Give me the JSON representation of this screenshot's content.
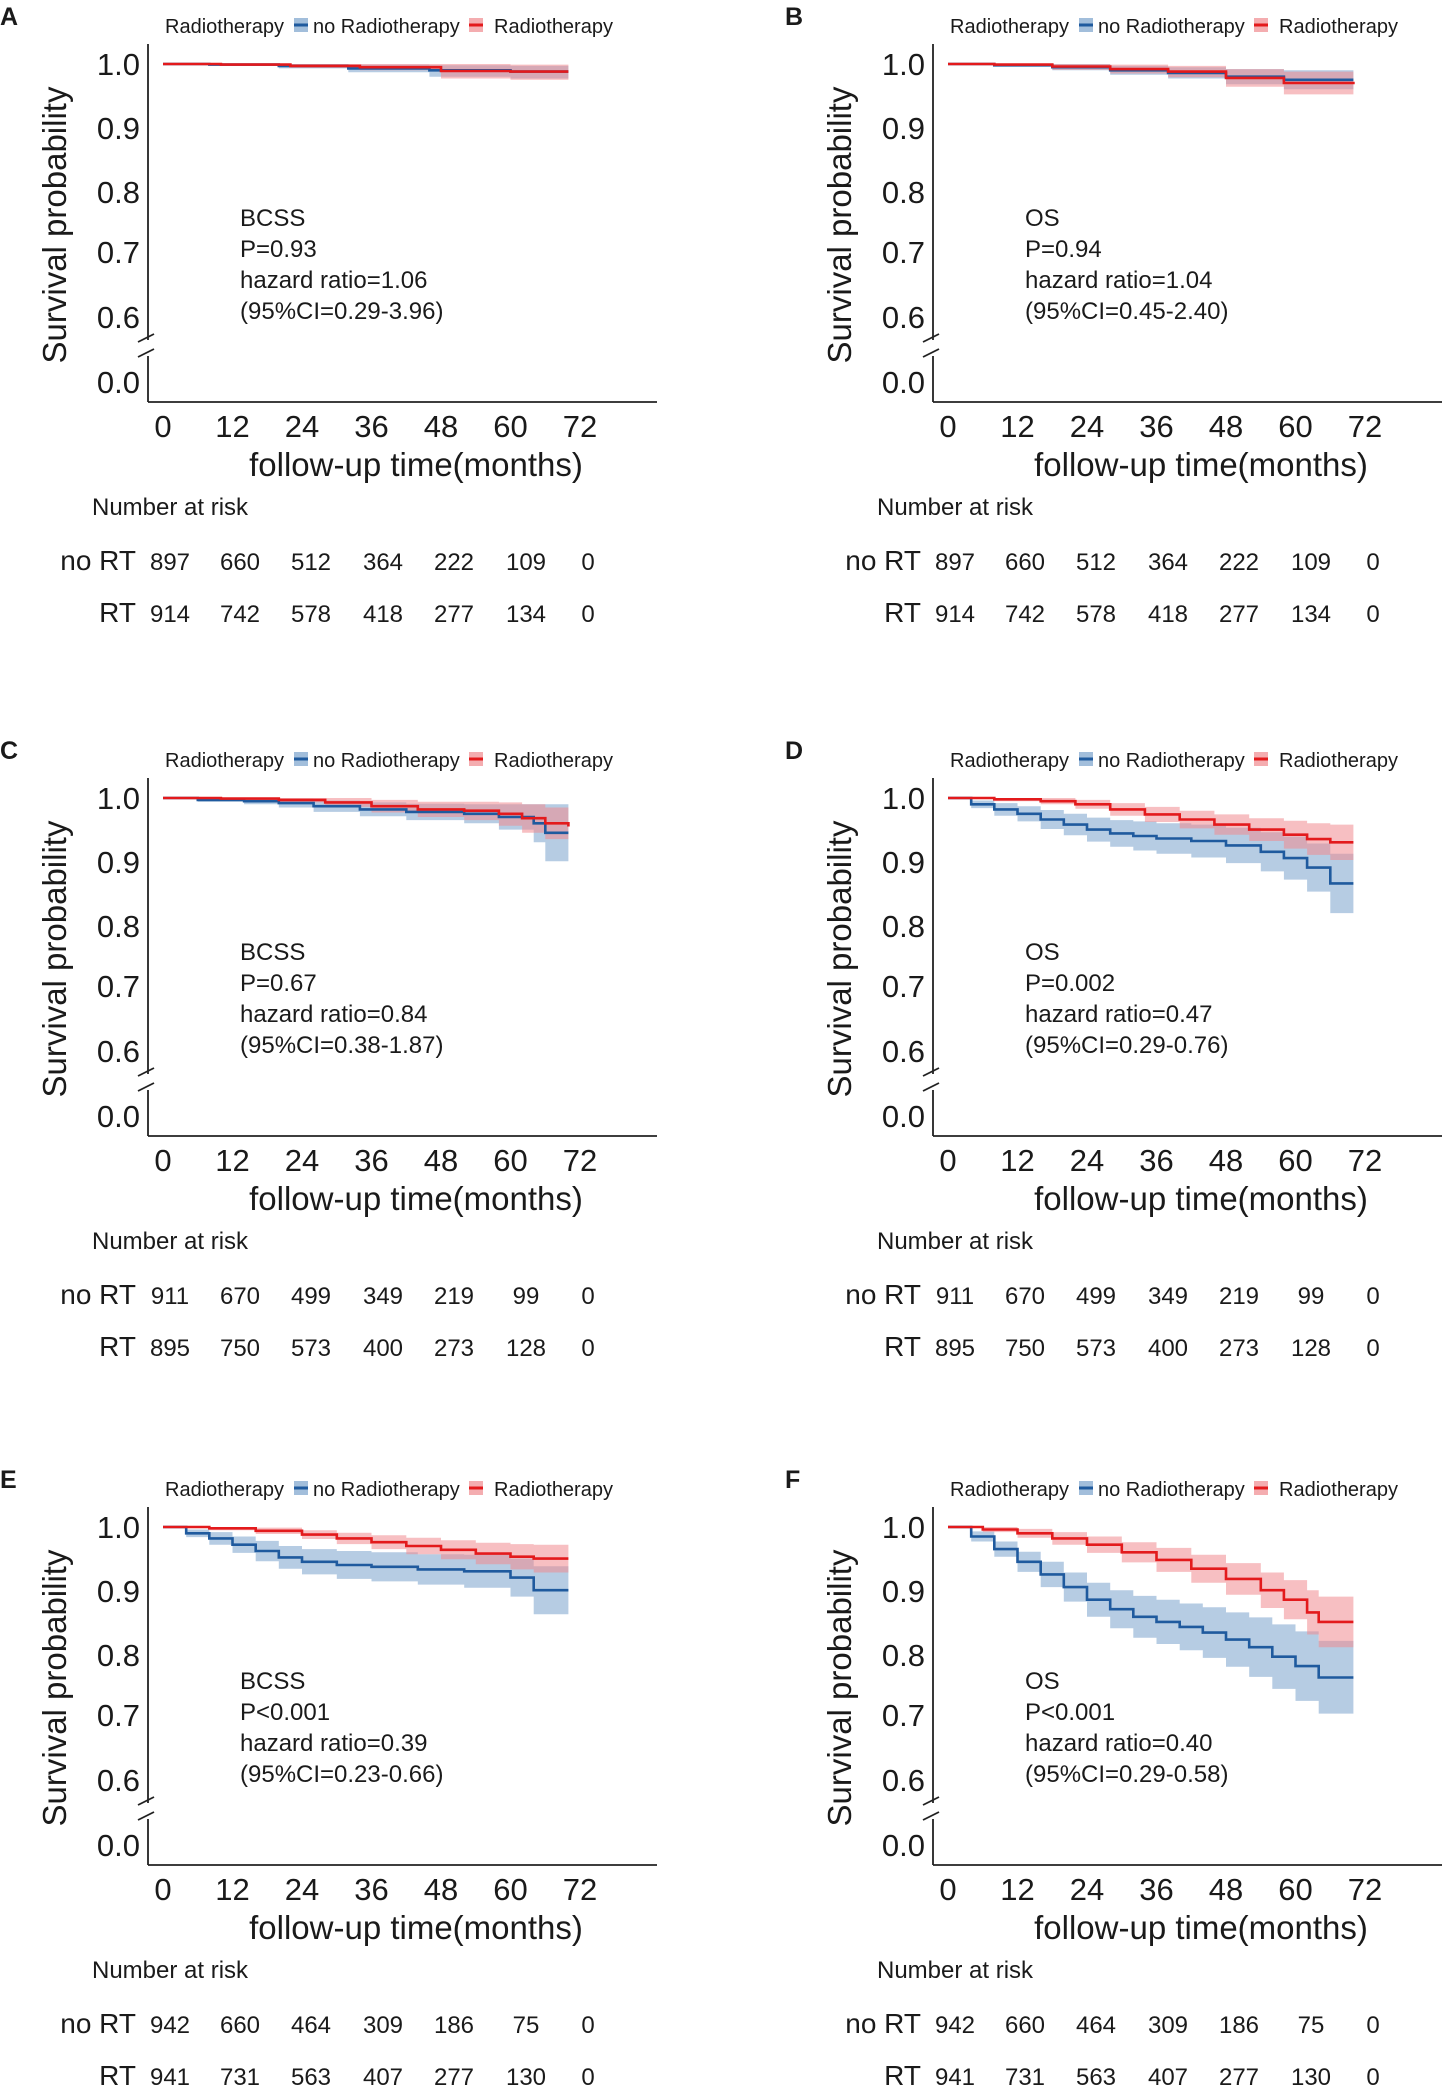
{
  "colors": {
    "no_rt": "#1f5a9e",
    "rt": "#e31a1c",
    "no_rt_band": "#7aa3cc",
    "rt_band": "#f08a8f",
    "axis": "#222222"
  },
  "shared": {
    "legend_title": "Radiotherapy",
    "legend_no": "no Radiotherapy",
    "legend_rt": "Radiotherapy",
    "ylabel": "Survival probability",
    "xlabel": "follow-up time(months)",
    "yticks": [
      "1.0",
      "0.9",
      "0.8",
      "0.7",
      "0.6",
      "0.0"
    ],
    "xticks": [
      "0",
      "12",
      "24",
      "36",
      "48",
      "60",
      "72"
    ],
    "risk_title": "Number at risk",
    "risk_no_label": "no RT",
    "risk_rt_label": "RT"
  },
  "chart_data": [
    {
      "panel": "A",
      "type": "line",
      "endpoint": "BCSS",
      "annotation": [
        "BCSS",
        "P=0.93",
        "hazard ratio=1.06",
        "(95%CI=0.29-3.96)"
      ],
      "xlim": [
        0,
        72
      ],
      "ylim": [
        0.55,
        1.0
      ],
      "y_axis_break": "0.6 to 0.0",
      "series": [
        {
          "name": "no Radiotherapy",
          "x": [
            0,
            8,
            20,
            32,
            46,
            60,
            70
          ],
          "y": [
            1.0,
            0.999,
            0.997,
            0.993,
            0.99,
            0.988,
            0.988
          ],
          "lower": [
            1.0,
            0.997,
            0.993,
            0.987,
            0.98,
            0.977,
            0.977
          ],
          "upper": [
            1.0,
            1.0,
            1.0,
            0.999,
            0.998,
            0.997,
            0.997
          ]
        },
        {
          "name": "Radiotherapy",
          "x": [
            0,
            10,
            22,
            34,
            48,
            60,
            70
          ],
          "y": [
            1.0,
            0.999,
            0.997,
            0.995,
            0.989,
            0.988,
            0.988
          ],
          "lower": [
            1.0,
            0.997,
            0.994,
            0.99,
            0.977,
            0.975,
            0.975
          ],
          "upper": [
            1.0,
            1.0,
            1.0,
            1.0,
            1.0,
            0.999,
            0.999
          ]
        }
      ],
      "risk_no": [
        897,
        660,
        512,
        364,
        222,
        109,
        0
      ],
      "risk_rt": [
        914,
        742,
        578,
        418,
        277,
        134,
        0
      ]
    },
    {
      "panel": "B",
      "type": "line",
      "endpoint": "OS",
      "annotation": [
        "OS",
        "P=0.94",
        "hazard ratio=1.04",
        "(95%CI=0.45-2.40)"
      ],
      "xlim": [
        0,
        72
      ],
      "ylim": [
        0.55,
        1.0
      ],
      "y_axis_break": "0.6 to 0.0",
      "series": [
        {
          "name": "no Radiotherapy",
          "x": [
            0,
            8,
            18,
            28,
            38,
            48,
            58,
            70
          ],
          "y": [
            1.0,
            0.998,
            0.995,
            0.99,
            0.986,
            0.98,
            0.975,
            0.975
          ],
          "lower": [
            1.0,
            0.996,
            0.99,
            0.983,
            0.977,
            0.968,
            0.96,
            0.958
          ],
          "upper": [
            1.0,
            1.0,
            1.0,
            0.997,
            0.995,
            0.992,
            0.99,
            0.99
          ]
        },
        {
          "name": "Radiotherapy",
          "x": [
            0,
            8,
            18,
            28,
            38,
            48,
            58,
            70
          ],
          "y": [
            1.0,
            0.999,
            0.996,
            0.992,
            0.988,
            0.978,
            0.97,
            0.968
          ],
          "lower": [
            1.0,
            0.997,
            0.991,
            0.985,
            0.979,
            0.964,
            0.952,
            0.948
          ],
          "upper": [
            1.0,
            1.0,
            1.0,
            0.999,
            0.997,
            0.992,
            0.988,
            0.988
          ]
        }
      ],
      "risk_no": [
        897,
        660,
        512,
        364,
        222,
        109,
        0
      ],
      "risk_rt": [
        914,
        742,
        578,
        418,
        277,
        134,
        0
      ]
    },
    {
      "panel": "C",
      "type": "line",
      "endpoint": "BCSS",
      "annotation": [
        "BCSS",
        "P=0.67",
        "hazard ratio=0.84",
        "(95%CI=0.38-1.87)"
      ],
      "xlim": [
        0,
        72
      ],
      "ylim": [
        0.55,
        1.0
      ],
      "y_axis_break": "0.6 to 0.0",
      "series": [
        {
          "name": "no Radiotherapy",
          "x": [
            0,
            6,
            14,
            20,
            26,
            34,
            42,
            52,
            58,
            64,
            66,
            70
          ],
          "y": [
            1.0,
            0.997,
            0.995,
            0.992,
            0.987,
            0.982,
            0.978,
            0.975,
            0.97,
            0.96,
            0.945,
            0.945
          ],
          "lower": [
            1.0,
            0.994,
            0.99,
            0.985,
            0.978,
            0.971,
            0.965,
            0.96,
            0.95,
            0.93,
            0.9,
            0.9
          ],
          "upper": [
            1.0,
            1.0,
            1.0,
            0.999,
            0.996,
            0.993,
            0.991,
            0.99,
            0.99,
            0.99,
            0.99,
            0.99
          ]
        },
        {
          "name": "Radiotherapy",
          "x": [
            0,
            10,
            20,
            28,
            36,
            44,
            52,
            58,
            62,
            66,
            70
          ],
          "y": [
            1.0,
            0.999,
            0.997,
            0.993,
            0.987,
            0.982,
            0.98,
            0.975,
            0.968,
            0.96,
            0.955
          ],
          "lower": [
            1.0,
            0.997,
            0.993,
            0.986,
            0.977,
            0.97,
            0.965,
            0.956,
            0.945,
            0.935,
            0.93
          ],
          "upper": [
            1.0,
            1.0,
            1.0,
            1.0,
            0.997,
            0.994,
            0.994,
            0.993,
            0.99,
            0.985,
            0.98
          ]
        }
      ],
      "risk_no": [
        911,
        670,
        499,
        349,
        219,
        99,
        0
      ],
      "risk_rt": [
        895,
        750,
        573,
        400,
        273,
        128,
        0
      ]
    },
    {
      "panel": "D",
      "type": "line",
      "endpoint": "OS",
      "annotation": [
        "OS",
        "P=0.002",
        "hazard ratio=0.47",
        "(95%CI=0.29-0.76)"
      ],
      "xlim": [
        0,
        72
      ],
      "ylim": [
        0.55,
        1.0
      ],
      "y_axis_break": "0.6 to 0.0",
      "series": [
        {
          "name": "no Radiotherapy",
          "x": [
            0,
            4,
            8,
            12,
            16,
            20,
            24,
            28,
            32,
            36,
            42,
            48,
            54,
            58,
            62,
            66,
            70
          ],
          "y": [
            1.0,
            0.99,
            0.982,
            0.975,
            0.966,
            0.958,
            0.95,
            0.944,
            0.94,
            0.936,
            0.932,
            0.925,
            0.915,
            0.905,
            0.89,
            0.865,
            0.865
          ],
          "lower": [
            1.0,
            0.984,
            0.972,
            0.963,
            0.951,
            0.941,
            0.931,
            0.923,
            0.917,
            0.912,
            0.906,
            0.897,
            0.884,
            0.871,
            0.852,
            0.818,
            0.815
          ],
          "upper": [
            1.0,
            0.996,
            0.992,
            0.987,
            0.981,
            0.975,
            0.969,
            0.965,
            0.963,
            0.96,
            0.958,
            0.953,
            0.946,
            0.939,
            0.928,
            0.912,
            0.91
          ]
        },
        {
          "name": "Radiotherapy",
          "x": [
            0,
            8,
            16,
            22,
            28,
            34,
            40,
            46,
            52,
            58,
            62,
            66,
            70
          ],
          "y": [
            1.0,
            0.998,
            0.995,
            0.99,
            0.982,
            0.974,
            0.966,
            0.958,
            0.95,
            0.942,
            0.935,
            0.93,
            0.93
          ],
          "lower": [
            1.0,
            0.995,
            0.99,
            0.983,
            0.972,
            0.962,
            0.952,
            0.942,
            0.932,
            0.92,
            0.91,
            0.902,
            0.9
          ],
          "upper": [
            1.0,
            1.0,
            1.0,
            0.997,
            0.992,
            0.986,
            0.98,
            0.974,
            0.968,
            0.964,
            0.96,
            0.958,
            0.958
          ]
        }
      ],
      "risk_no": [
        911,
        670,
        499,
        349,
        219,
        99,
        0
      ],
      "risk_rt": [
        895,
        750,
        573,
        400,
        273,
        128,
        0
      ]
    },
    {
      "panel": "E",
      "type": "line",
      "endpoint": "BCSS",
      "annotation": [
        "BCSS",
        "P<0.001",
        "hazard ratio=0.39",
        "(95%CI=0.23-0.66)"
      ],
      "xlim": [
        0,
        72
      ],
      "ylim": [
        0.55,
        1.0
      ],
      "y_axis_break": "0.6 to 0.0",
      "series": [
        {
          "name": "no Radiotherapy",
          "x": [
            0,
            4,
            8,
            12,
            16,
            20,
            24,
            30,
            36,
            44,
            52,
            60,
            64,
            70
          ],
          "y": [
            1.0,
            0.99,
            0.982,
            0.972,
            0.962,
            0.952,
            0.945,
            0.94,
            0.937,
            0.933,
            0.93,
            0.92,
            0.9,
            0.9
          ],
          "lower": [
            1.0,
            0.984,
            0.972,
            0.959,
            0.946,
            0.934,
            0.925,
            0.918,
            0.914,
            0.909,
            0.904,
            0.89,
            0.862,
            0.86
          ],
          "upper": [
            1.0,
            0.996,
            0.992,
            0.985,
            0.978,
            0.97,
            0.965,
            0.962,
            0.96,
            0.957,
            0.956,
            0.95,
            0.938,
            0.94
          ]
        },
        {
          "name": "Radiotherapy",
          "x": [
            0,
            8,
            16,
            24,
            30,
            36,
            42,
            48,
            54,
            60,
            64,
            70
          ],
          "y": [
            1.0,
            0.998,
            0.994,
            0.988,
            0.982,
            0.976,
            0.97,
            0.964,
            0.958,
            0.953,
            0.95,
            0.95
          ],
          "lower": [
            1.0,
            0.995,
            0.989,
            0.981,
            0.973,
            0.965,
            0.957,
            0.949,
            0.941,
            0.933,
            0.928,
            0.926
          ],
          "upper": [
            1.0,
            1.0,
            0.999,
            0.995,
            0.991,
            0.987,
            0.983,
            0.979,
            0.975,
            0.973,
            0.972,
            0.972
          ]
        }
      ],
      "risk_no": [
        942,
        660,
        464,
        309,
        186,
        75,
        0
      ],
      "risk_rt": [
        941,
        731,
        563,
        407,
        277,
        130,
        0
      ]
    },
    {
      "panel": "F",
      "type": "line",
      "endpoint": "OS",
      "annotation": [
        "OS",
        "P<0.001",
        "hazard ratio=0.40",
        "(95%CI=0.29-0.58)"
      ],
      "xlim": [
        0,
        72
      ],
      "ylim": [
        0.55,
        1.0
      ],
      "y_axis_break": "0.6 to 0.0",
      "series": [
        {
          "name": "no Radiotherapy",
          "x": [
            0,
            4,
            8,
            12,
            16,
            20,
            24,
            28,
            32,
            36,
            40,
            44,
            48,
            52,
            56,
            60,
            64,
            70
          ],
          "y": [
            1.0,
            0.985,
            0.965,
            0.945,
            0.925,
            0.905,
            0.885,
            0.87,
            0.858,
            0.85,
            0.842,
            0.833,
            0.822,
            0.81,
            0.795,
            0.78,
            0.762,
            0.762
          ],
          "lower": [
            1.0,
            0.977,
            0.953,
            0.929,
            0.905,
            0.882,
            0.858,
            0.84,
            0.825,
            0.815,
            0.805,
            0.793,
            0.779,
            0.763,
            0.744,
            0.725,
            0.705,
            0.705
          ],
          "upper": [
            1.0,
            0.993,
            0.977,
            0.961,
            0.945,
            0.928,
            0.912,
            0.9,
            0.891,
            0.885,
            0.879,
            0.873,
            0.865,
            0.857,
            0.846,
            0.835,
            0.82,
            0.82
          ]
        },
        {
          "name": "Radiotherapy",
          "x": [
            0,
            6,
            12,
            18,
            24,
            30,
            36,
            42,
            48,
            54,
            58,
            62,
            64,
            70
          ],
          "y": [
            1.0,
            0.996,
            0.99,
            0.982,
            0.972,
            0.96,
            0.948,
            0.934,
            0.918,
            0.9,
            0.885,
            0.865,
            0.85,
            0.85
          ],
          "lower": [
            1.0,
            0.992,
            0.983,
            0.972,
            0.959,
            0.944,
            0.929,
            0.912,
            0.893,
            0.872,
            0.854,
            0.83,
            0.81,
            0.808
          ],
          "upper": [
            1.0,
            1.0,
            0.997,
            0.992,
            0.985,
            0.976,
            0.967,
            0.956,
            0.943,
            0.928,
            0.916,
            0.9,
            0.89,
            0.892
          ]
        }
      ],
      "risk_no": [
        942,
        660,
        464,
        309,
        186,
        75,
        0
      ],
      "risk_rt": [
        941,
        731,
        563,
        407,
        277,
        130,
        0
      ]
    }
  ]
}
